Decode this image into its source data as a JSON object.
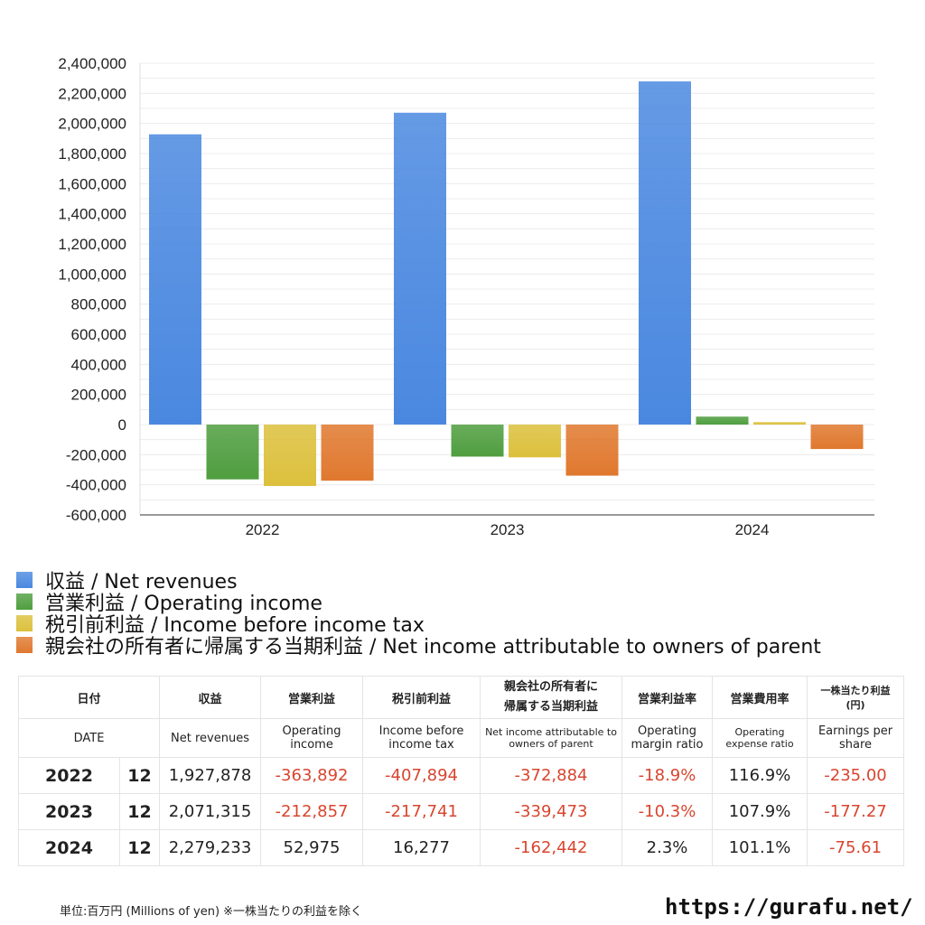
{
  "chart_data": {
    "type": "bar",
    "categories": [
      "2022",
      "2023",
      "2024"
    ],
    "ylim": [
      -600000,
      2400000
    ],
    "yticks": [
      "2,400,000",
      "2,200,000",
      "2,000,000",
      "1,800,000",
      "1,600,000",
      "1,400,000",
      "1,200,000",
      "1,000,000",
      "800,000",
      "600,000",
      "400,000",
      "200,000",
      "0",
      "-200,000",
      "-400,000",
      "-600,000"
    ],
    "grid": true,
    "legend_position": "bottom",
    "series": [
      {
        "name": "収益 / Net revenues",
        "values": [
          1927878,
          2071315,
          2279233
        ],
        "color": "#4a88e0"
      },
      {
        "name": "営業利益 / Operating income",
        "values": [
          -363892,
          -212857,
          52975
        ],
        "color": "#4f9e3f"
      },
      {
        "name": "税引前利益 / Income before income tax",
        "values": [
          -407894,
          -217741,
          16277
        ],
        "color": "#dcc03c"
      },
      {
        "name": "親会社の所有者に帰属する当期利益 / Net income attributable to owners of parent",
        "values": [
          -372884,
          -339473,
          -162442
        ],
        "color": "#e0782e"
      }
    ]
  },
  "table": {
    "header_jp": [
      "日付",
      "収益",
      "営業利益",
      "税引前利益",
      "親会社の所有者に帰属する当期利益",
      "営業利益率",
      "営業費用率",
      "一株当たり利益(円)"
    ],
    "header_en": [
      "DATE",
      "Net revenues",
      "Operating income",
      "Income before income tax",
      "Net income attributable to owners of parent",
      "Operating margin ratio",
      "Operating expense ratio",
      "Earnings per share"
    ],
    "rows": [
      {
        "year": "2022",
        "month": "12",
        "cells": [
          "1,927,878",
          "-363,892",
          "-407,894",
          "-372,884",
          "-18.9%",
          "116.9%",
          "-235.00"
        ]
      },
      {
        "year": "2023",
        "month": "12",
        "cells": [
          "2,071,315",
          "-212,857",
          "-217,741",
          "-339,473",
          "-10.3%",
          "107.9%",
          "-177.27"
        ]
      },
      {
        "year": "2024",
        "month": "12",
        "cells": [
          "2,279,233",
          "52,975",
          "16,277",
          "-162,442",
          "2.3%",
          "101.1%",
          "-75.61"
        ]
      }
    ],
    "negative_color": "#d9452f"
  },
  "footer": {
    "unit_note": "単位:百万円 (Millions of yen) ※一株当たりの利益を除く",
    "url": "https://gurafu.net/"
  }
}
